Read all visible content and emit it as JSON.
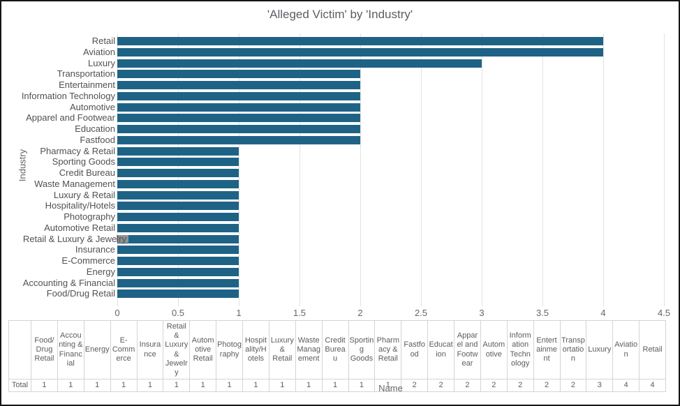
{
  "chart_data": {
    "type": "bar",
    "orientation": "horizontal",
    "title": "'Alleged Victim' by 'Industry'",
    "xlabel": "Name",
    "ylabel": "Industry",
    "categories": [
      "Retail",
      "Aviation",
      "Luxury",
      "Transportation",
      "Entertainment",
      "Information Technology",
      "Automotive",
      "Apparel and Footwear",
      "Education",
      "Fastfood",
      "Pharmacy & Retail",
      "Sporting Goods",
      "Credit Bureau",
      "Waste Management",
      "Luxury & Retail",
      "Hospitality/Hotels",
      "Photography",
      "Automotive Retail",
      "Retail & Luxury & Jewelry",
      "Insurance",
      "E-Commerce",
      "Energy",
      "Accounting & Financial",
      "Food/Drug Retail"
    ],
    "values": [
      4,
      4,
      3,
      2,
      2,
      2,
      2,
      2,
      2,
      2,
      1,
      1,
      1,
      1,
      1,
      1,
      1,
      1,
      1,
      1,
      1,
      1,
      1,
      1
    ],
    "xlim": [
      0,
      4.5
    ],
    "xticks": [
      "0",
      "0.5",
      "1",
      "1.5",
      "2",
      "2.5",
      "3",
      "3.5",
      "4",
      "4.5"
    ],
    "grid": true,
    "legend": false,
    "bar_color": "#1e6386",
    "gridline_color": "#e2e2e2"
  },
  "summary_table": {
    "corner_label": "",
    "row_label": "Total",
    "columns": [
      "Food/Drug Retail",
      "Accounting & Financial",
      "Energy",
      "E-Commerce",
      "Insurance",
      "Retail & Luxury & Jewelry",
      "Automotive Retail",
      "Photography",
      "Hospitality/Hotels",
      "Luxury & Retail",
      "Waste Management",
      "Credit Bureau",
      "Sporting Goods",
      "Pharmacy & Retail",
      "Fastfood",
      "Education",
      "Apparel and Footwear",
      "Automotive",
      "Information Technology",
      "Entertainment",
      "Transportation",
      "Luxury",
      "Aviation",
      "Retail"
    ],
    "totals": [
      1,
      1,
      1,
      1,
      1,
      1,
      1,
      1,
      1,
      1,
      1,
      1,
      1,
      1,
      2,
      2,
      2,
      2,
      2,
      2,
      2,
      3,
      4,
      4
    ]
  }
}
